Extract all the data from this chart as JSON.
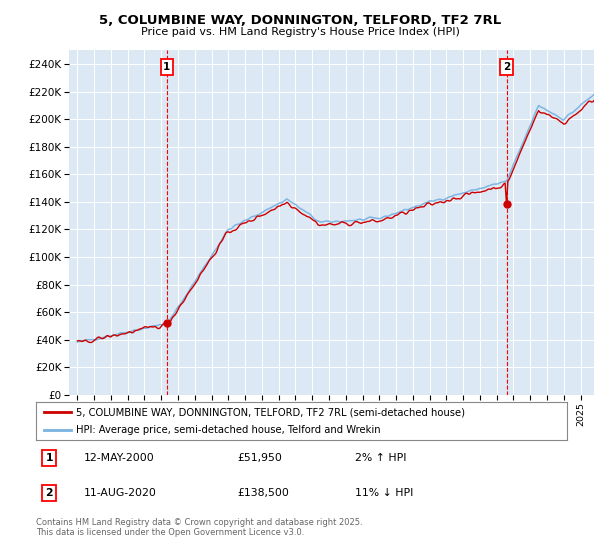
{
  "title_line1": "5, COLUMBINE WAY, DONNINGTON, TELFORD, TF2 7RL",
  "title_line2": "Price paid vs. HM Land Registry's House Price Index (HPI)",
  "yticks": [
    0,
    20000,
    40000,
    60000,
    80000,
    100000,
    120000,
    140000,
    160000,
    180000,
    200000,
    220000,
    240000
  ],
  "ytick_labels": [
    "£0",
    "£20K",
    "£40K",
    "£60K",
    "£80K",
    "£100K",
    "£120K",
    "£140K",
    "£160K",
    "£180K",
    "£200K",
    "£220K",
    "£240K"
  ],
  "hpi_color": "#7ab3e0",
  "price_color": "#cc0000",
  "legend_line1": "5, COLUMBINE WAY, DONNINGTON, TELFORD, TF2 7RL (semi-detached house)",
  "legend_line2": "HPI: Average price, semi-detached house, Telford and Wrekin",
  "annotation1_date": "12-MAY-2000",
  "annotation1_price": "£51,950",
  "annotation1_hpi": "2% ↑ HPI",
  "annotation2_date": "11-AUG-2020",
  "annotation2_price": "£138,500",
  "annotation2_hpi": "11% ↓ HPI",
  "footer": "Contains HM Land Registry data © Crown copyright and database right 2025.\nThis data is licensed under the Open Government Licence v3.0.",
  "background_color": "#ffffff",
  "plot_bg_color": "#dce9f5",
  "grid_color": "#ffffff"
}
